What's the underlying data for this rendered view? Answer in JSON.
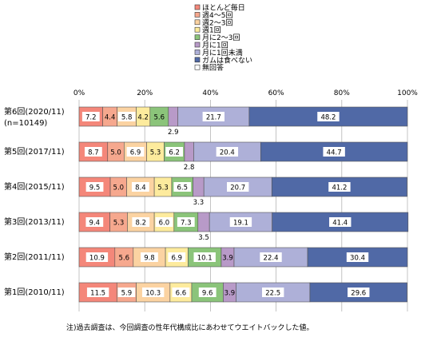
{
  "chart_data": {
    "type": "bar",
    "orientation": "horizontal",
    "stacked": true,
    "xlim": [
      0,
      100
    ],
    "x_ticks": [
      "0%",
      "20%",
      "40%",
      "60%",
      "80%",
      "100%"
    ],
    "grid": true,
    "legend_placement": "top",
    "categories": [
      [
        "第6回(2020/11)",
        "(n=10149)"
      ],
      [
        "第5回(2017/11)"
      ],
      [
        "第4回(2015/11)"
      ],
      [
        "第3回(2013/11)"
      ],
      [
        "第2回(2011/11)"
      ],
      [
        "第1回(2010/11)"
      ]
    ],
    "series": [
      {
        "name": "ほとんど毎日",
        "color": "#f4877a",
        "values": [
          7.2,
          8.7,
          9.5,
          9.4,
          10.9,
          11.5
        ]
      },
      {
        "name": "週4～5回",
        "color": "#f6a88e",
        "values": [
          4.4,
          5.0,
          5.0,
          5.3,
          5.6,
          5.9
        ]
      },
      {
        "name": "週2～3回",
        "color": "#fbd3a2",
        "values": [
          5.8,
          6.9,
          8.4,
          8.2,
          9.8,
          10.3
        ]
      },
      {
        "name": "週1回",
        "color": "#fdeb9d",
        "values": [
          4.2,
          5.3,
          5.3,
          6.0,
          6.9,
          6.6
        ]
      },
      {
        "name": "月に2～3回",
        "color": "#8bc47a",
        "values": [
          5.6,
          6.2,
          6.5,
          7.3,
          10.1,
          9.6
        ]
      },
      {
        "name": "月に1回",
        "color": "#b89ac8",
        "values": [
          2.9,
          2.8,
          3.3,
          3.5,
          3.9,
          3.9
        ]
      },
      {
        "name": "月に1回未満",
        "color": "#aeb0d8",
        "values": [
          21.7,
          20.4,
          20.7,
          19.1,
          22.4,
          22.5
        ]
      },
      {
        "name": "ガムは食べない",
        "color": "#5069a6",
        "values": [
          48.2,
          44.7,
          41.2,
          41.4,
          30.4,
          29.6
        ]
      },
      {
        "name": "無回答",
        "color": "#ffffff",
        "values": [
          0,
          0,
          0,
          0,
          0,
          0
        ]
      }
    ],
    "note": "注)過去調査は、今回調査の性年代構成比にあわせてウエイトバックした値。"
  }
}
